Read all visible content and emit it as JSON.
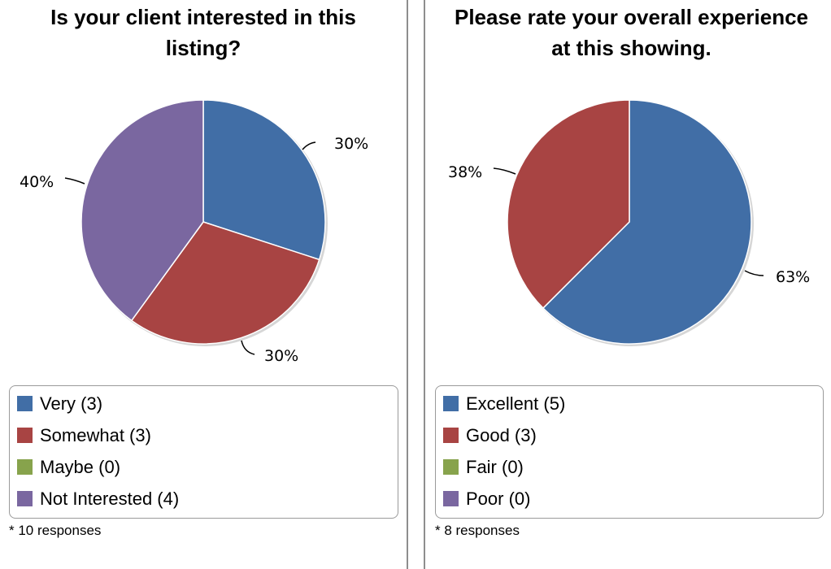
{
  "colors": {
    "blue": "#416ea6",
    "red": "#a84443",
    "green": "#87a34c",
    "purple": "#7a67a0"
  },
  "chart_data": [
    {
      "type": "pie",
      "title": "Is your client interested in this listing?",
      "title_line1": "Is your client interested in this",
      "title_line2": "listing?",
      "categories": [
        "Very",
        "Somewhat",
        "Maybe",
        "Not Interested"
      ],
      "values": [
        3,
        3,
        0,
        4
      ],
      "legend_labels": [
        "Very (3)",
        "Somewhat (3)",
        "Maybe (0)",
        "Not Interested (4)"
      ],
      "slice_labels": [
        "30%",
        "30%",
        "",
        "40%"
      ],
      "colors": [
        "#416ea6",
        "#a84443",
        "#87a34c",
        "#7a67a0"
      ],
      "legend": "bottom",
      "footnote": "* 10 responses"
    },
    {
      "type": "pie",
      "title": "Please rate your overall experience at this showing.",
      "title_line1": "Please rate your overall experience",
      "title_line2": "at this showing.",
      "categories": [
        "Excellent",
        "Good",
        "Fair",
        "Poor"
      ],
      "values": [
        5,
        3,
        0,
        0
      ],
      "legend_labels": [
        "Excellent (5)",
        "Good (3)",
        "Fair (0)",
        "Poor (0)"
      ],
      "slice_labels": [
        "63%",
        "38%",
        "",
        ""
      ],
      "colors": [
        "#416ea6",
        "#a84443",
        "#87a34c",
        "#7a67a0"
      ],
      "legend": "bottom",
      "footnote": "* 8 responses"
    }
  ]
}
